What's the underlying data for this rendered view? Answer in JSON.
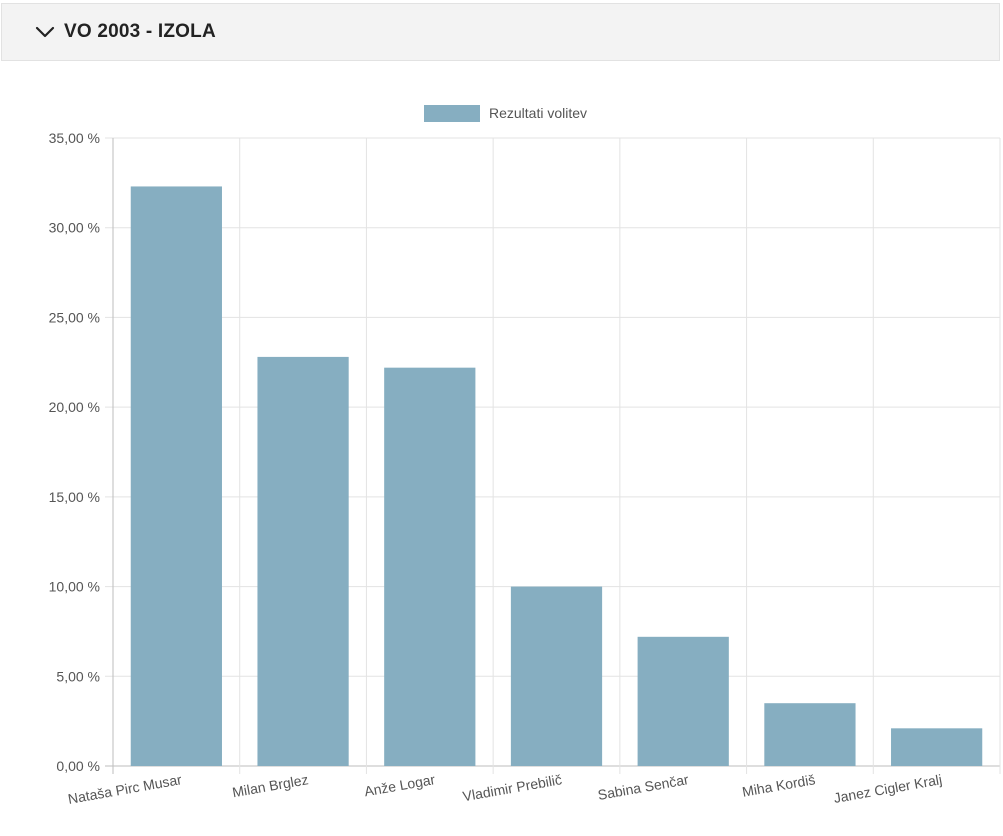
{
  "panel": {
    "title": "VO 2003 - IZOLA",
    "toggle_icon": "chevron-down-icon"
  },
  "colors": {
    "bar": "#86aec1",
    "grid": "#e3e3e3",
    "axis": "#bdbdbd",
    "tick_text": "#555555",
    "header_bg": "#f3f3f3"
  },
  "chart_data": {
    "type": "bar",
    "categories": [
      "Nataša Pirc Musar",
      "Milan Brglez",
      "Anže Logar",
      "Vladimir Prebilič",
      "Sabina Senčar",
      "Miha Kordiš",
      "Janez Cigler Kralj"
    ],
    "series": [
      {
        "name": "Rezultati volitev",
        "values": [
          32.3,
          22.8,
          22.2,
          10.0,
          7.2,
          3.5,
          2.1
        ]
      }
    ],
    "title": "",
    "xlabel": "",
    "ylabel": "",
    "ylim": [
      0,
      35
    ],
    "yticks": [
      "0,00 %",
      "5,00 %",
      "10,00 %",
      "15,00 %",
      "20,00 %",
      "25,00 %",
      "30,00 %",
      "35,00 %"
    ],
    "grid": true,
    "legend_position": "top-center"
  }
}
